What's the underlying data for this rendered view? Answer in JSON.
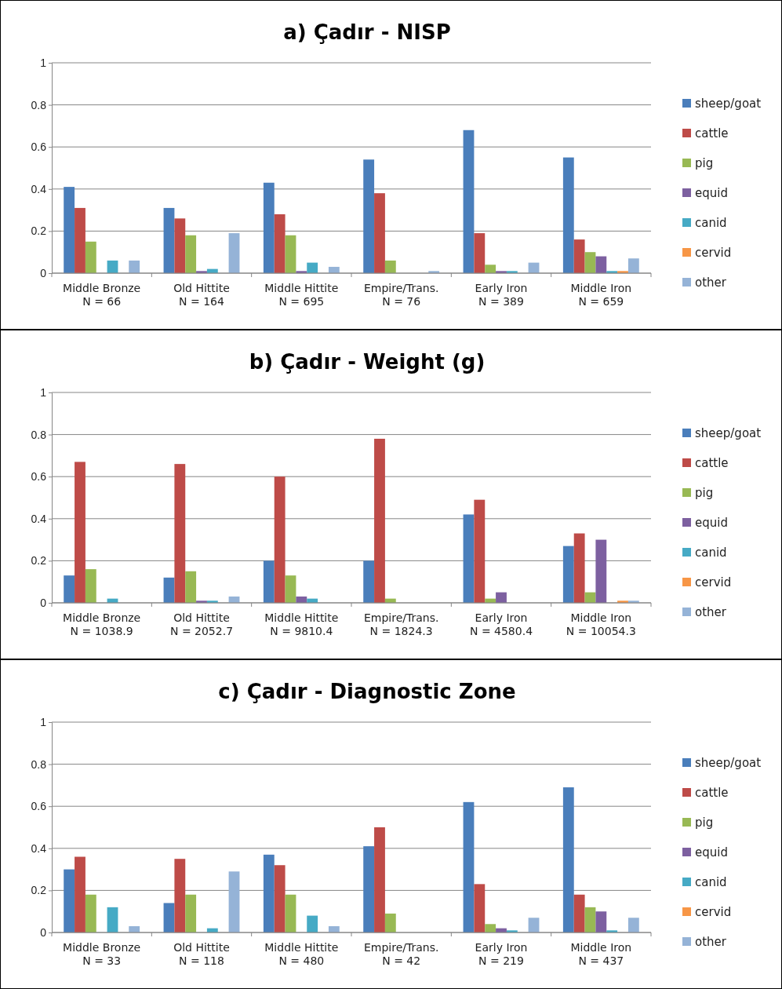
{
  "chart_data": [
    {
      "type": "bar",
      "title": "a) Çadır - NISP",
      "categories": [
        "Middle Bronze\nN = 66",
        "Old Hittite\nN = 164",
        "Middle Hittite\nN = 695",
        "Empire/Trans.\nN = 76",
        "Early Iron\nN = 389",
        "Middle Iron\nN = 659"
      ],
      "ylim": [
        0,
        1
      ],
      "yticks": [
        0,
        0.2,
        0.4,
        0.6,
        0.8,
        1
      ],
      "grid": "y",
      "legend": "right",
      "series": [
        {
          "name": "sheep/goat",
          "color": "#4a7ebb",
          "values": [
            0.41,
            0.31,
            0.43,
            0.54,
            0.68,
            0.55
          ]
        },
        {
          "name": "cattle",
          "color": "#be4b48",
          "values": [
            0.31,
            0.26,
            0.28,
            0.38,
            0.19,
            0.16
          ]
        },
        {
          "name": "pig",
          "color": "#98b954",
          "values": [
            0.15,
            0.18,
            0.18,
            0.06,
            0.04,
            0.1
          ]
        },
        {
          "name": "equid",
          "color": "#7d60a0",
          "values": [
            0,
            0.01,
            0.01,
            0,
            0.01,
            0.08
          ]
        },
        {
          "name": "canid",
          "color": "#46aac5",
          "values": [
            0.06,
            0.02,
            0.05,
            0,
            0.01,
            0.01
          ]
        },
        {
          "name": "cervid",
          "color": "#f79646",
          "values": [
            0,
            0,
            0,
            0,
            0,
            0.01
          ]
        },
        {
          "name": "other",
          "color": "#95b3d7",
          "values": [
            0.06,
            0.19,
            0.03,
            0.01,
            0.05,
            0.07
          ]
        }
      ]
    },
    {
      "type": "bar",
      "title": "b) Çadır - Weight (g)",
      "categories": [
        "Middle Bronze\nN = 1038.9",
        "Old Hittite\nN = 2052.7",
        "Middle Hittite\nN = 9810.4",
        "Empire/Trans.\nN = 1824.3",
        "Early Iron\nN = 4580.4",
        "Middle Iron\nN = 10054.3"
      ],
      "ylim": [
        0,
        1
      ],
      "yticks": [
        0,
        0.2,
        0.4,
        0.6,
        0.8,
        1
      ],
      "grid": "y",
      "legend": "right",
      "series": [
        {
          "name": "sheep/goat",
          "color": "#4a7ebb",
          "values": [
            0.13,
            0.12,
            0.2,
            0.2,
            0.42,
            0.27
          ]
        },
        {
          "name": "cattle",
          "color": "#be4b48",
          "values": [
            0.67,
            0.66,
            0.6,
            0.78,
            0.49,
            0.33
          ]
        },
        {
          "name": "pig",
          "color": "#98b954",
          "values": [
            0.16,
            0.15,
            0.13,
            0.02,
            0.02,
            0.05
          ]
        },
        {
          "name": "equid",
          "color": "#7d60a0",
          "values": [
            0,
            0.01,
            0.03,
            0,
            0.05,
            0.3
          ]
        },
        {
          "name": "canid",
          "color": "#46aac5",
          "values": [
            0.02,
            0.01,
            0.02,
            0,
            0,
            0
          ]
        },
        {
          "name": "cervid",
          "color": "#f79646",
          "values": [
            0,
            0,
            0,
            0,
            0,
            0.01
          ]
        },
        {
          "name": "other",
          "color": "#95b3d7",
          "values": [
            0,
            0.03,
            0,
            0,
            0,
            0.01
          ]
        }
      ]
    },
    {
      "type": "bar",
      "title": "c) Çadır - Diagnostic Zone",
      "categories": [
        "Middle Bronze\nN = 33",
        "Old Hittite\nN = 118",
        "Middle Hittite\nN = 480",
        "Empire/Trans.\nN = 42",
        "Early Iron\nN = 219",
        "Middle Iron\nN = 437"
      ],
      "ylim": [
        0,
        1
      ],
      "yticks": [
        0,
        0.2,
        0.4,
        0.6,
        0.8,
        1
      ],
      "grid": "y",
      "legend": "right",
      "series": [
        {
          "name": "sheep/goat",
          "color": "#4a7ebb",
          "values": [
            0.3,
            0.14,
            0.37,
            0.41,
            0.62,
            0.69
          ]
        },
        {
          "name": "cattle",
          "color": "#be4b48",
          "values": [
            0.36,
            0.35,
            0.32,
            0.5,
            0.23,
            0.18
          ]
        },
        {
          "name": "pig",
          "color": "#98b954",
          "values": [
            0.18,
            0.18,
            0.18,
            0.09,
            0.04,
            0.12
          ]
        },
        {
          "name": "equid",
          "color": "#7d60a0",
          "values": [
            0,
            0,
            0,
            0,
            0.02,
            0.1
          ]
        },
        {
          "name": "canid",
          "color": "#46aac5",
          "values": [
            0.12,
            0.02,
            0.08,
            0,
            0.01,
            0.01
          ]
        },
        {
          "name": "cervid",
          "color": "#f79646",
          "values": [
            0,
            0,
            0,
            0,
            0,
            0
          ]
        },
        {
          "name": "other",
          "color": "#95b3d7",
          "values": [
            0.03,
            0.29,
            0.03,
            0,
            0.07,
            0.07
          ]
        }
      ]
    }
  ]
}
